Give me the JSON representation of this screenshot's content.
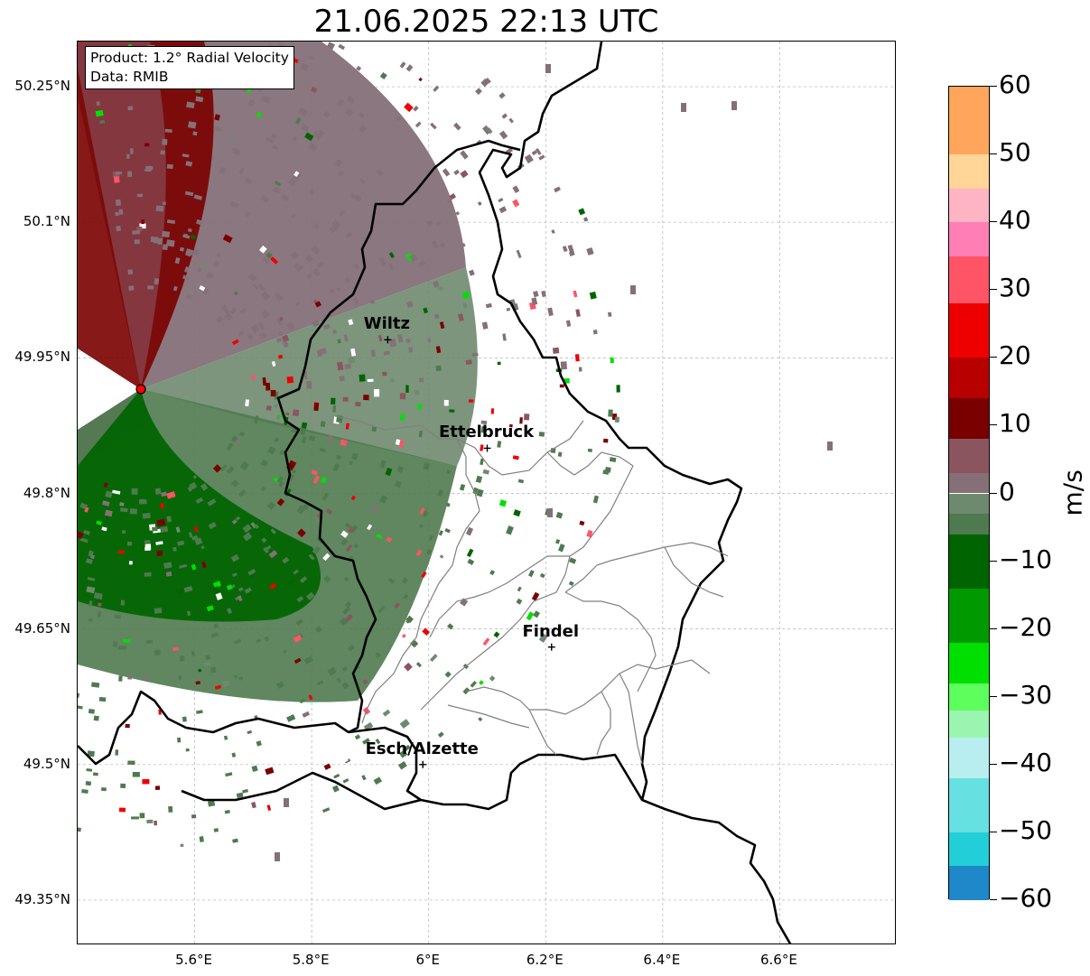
{
  "title": "21.06.2025 22:13 UTC",
  "info_box": {
    "product": "Product: 1.2° Radial Velocity",
    "data_source": "Data: RMIB"
  },
  "axes": {
    "lat_ticks": [
      "50.25°N",
      "50.1°N",
      "49.95°N",
      "49.8°N",
      "49.65°N",
      "49.5°N",
      "49.35°N"
    ],
    "lon_ticks": [
      "5.6°E",
      "5.8°E",
      "6°E",
      "6.2°E",
      "6.4°E",
      "6.6°E"
    ],
    "lat_values": [
      50.25,
      50.1,
      49.95,
      49.8,
      49.65,
      49.5,
      49.35
    ],
    "lon_values": [
      5.6,
      5.8,
      6.0,
      6.2,
      6.4,
      6.6
    ],
    "lon_range": [
      5.4,
      6.8
    ],
    "lat_range": [
      49.3,
      50.3
    ],
    "grid": "dashed"
  },
  "cities": [
    {
      "name": "Wiltz",
      "lon": 5.93,
      "lat": 49.97
    },
    {
      "name": "Ettelbruck",
      "lon": 6.1,
      "lat": 49.85
    },
    {
      "name": "Findel",
      "lon": 6.21,
      "lat": 49.63
    },
    {
      "name": "Esch/Alzette",
      "lon": 5.99,
      "lat": 49.5
    }
  ],
  "radar_site": {
    "lon": 5.505,
    "lat": 49.915
  },
  "colorbar": {
    "unit": "m/s",
    "min": -60,
    "max": 60,
    "ticks": [
      "60",
      "50",
      "40",
      "30",
      "20",
      "10",
      "0",
      "−10",
      "−20",
      "−30",
      "−40",
      "−50",
      "−60"
    ],
    "tick_values": [
      60,
      50,
      40,
      30,
      20,
      10,
      0,
      -10,
      -20,
      -30,
      -40,
      -50,
      -60
    ],
    "bands": [
      {
        "from": 50,
        "to": 60,
        "color": "#ffa65c"
      },
      {
        "from": 45,
        "to": 50,
        "color": "#ffd598"
      },
      {
        "from": 40,
        "to": 45,
        "color": "#ffb4c4"
      },
      {
        "from": 35,
        "to": 40,
        "color": "#ff7fb5"
      },
      {
        "from": 28,
        "to": 35,
        "color": "#ff5366"
      },
      {
        "from": 20,
        "to": 28,
        "color": "#ee0000"
      },
      {
        "from": 14,
        "to": 20,
        "color": "#b80000"
      },
      {
        "from": 8,
        "to": 14,
        "color": "#7a0000"
      },
      {
        "from": 3,
        "to": 8,
        "color": "#8b5560"
      },
      {
        "from": 0,
        "to": 3,
        "color": "#857078"
      },
      {
        "from": -3,
        "to": 0,
        "color": "#6e8a6e"
      },
      {
        "from": -6,
        "to": -3,
        "color": "#4f7a4f"
      },
      {
        "from": -14,
        "to": -6,
        "color": "#006400"
      },
      {
        "from": -22,
        "to": -14,
        "color": "#009a00"
      },
      {
        "from": -28,
        "to": -22,
        "color": "#00e000"
      },
      {
        "from": -32,
        "to": -28,
        "color": "#5cff5c"
      },
      {
        "from": -36,
        "to": -32,
        "color": "#99f5b0"
      },
      {
        "from": -42,
        "to": -36,
        "color": "#b8eef0"
      },
      {
        "from": -50,
        "to": -42,
        "color": "#66e0e0"
      },
      {
        "from": -55,
        "to": -50,
        "color": "#22cfd8"
      },
      {
        "from": -60,
        "to": -55,
        "color": "#1e88c8"
      }
    ]
  }
}
